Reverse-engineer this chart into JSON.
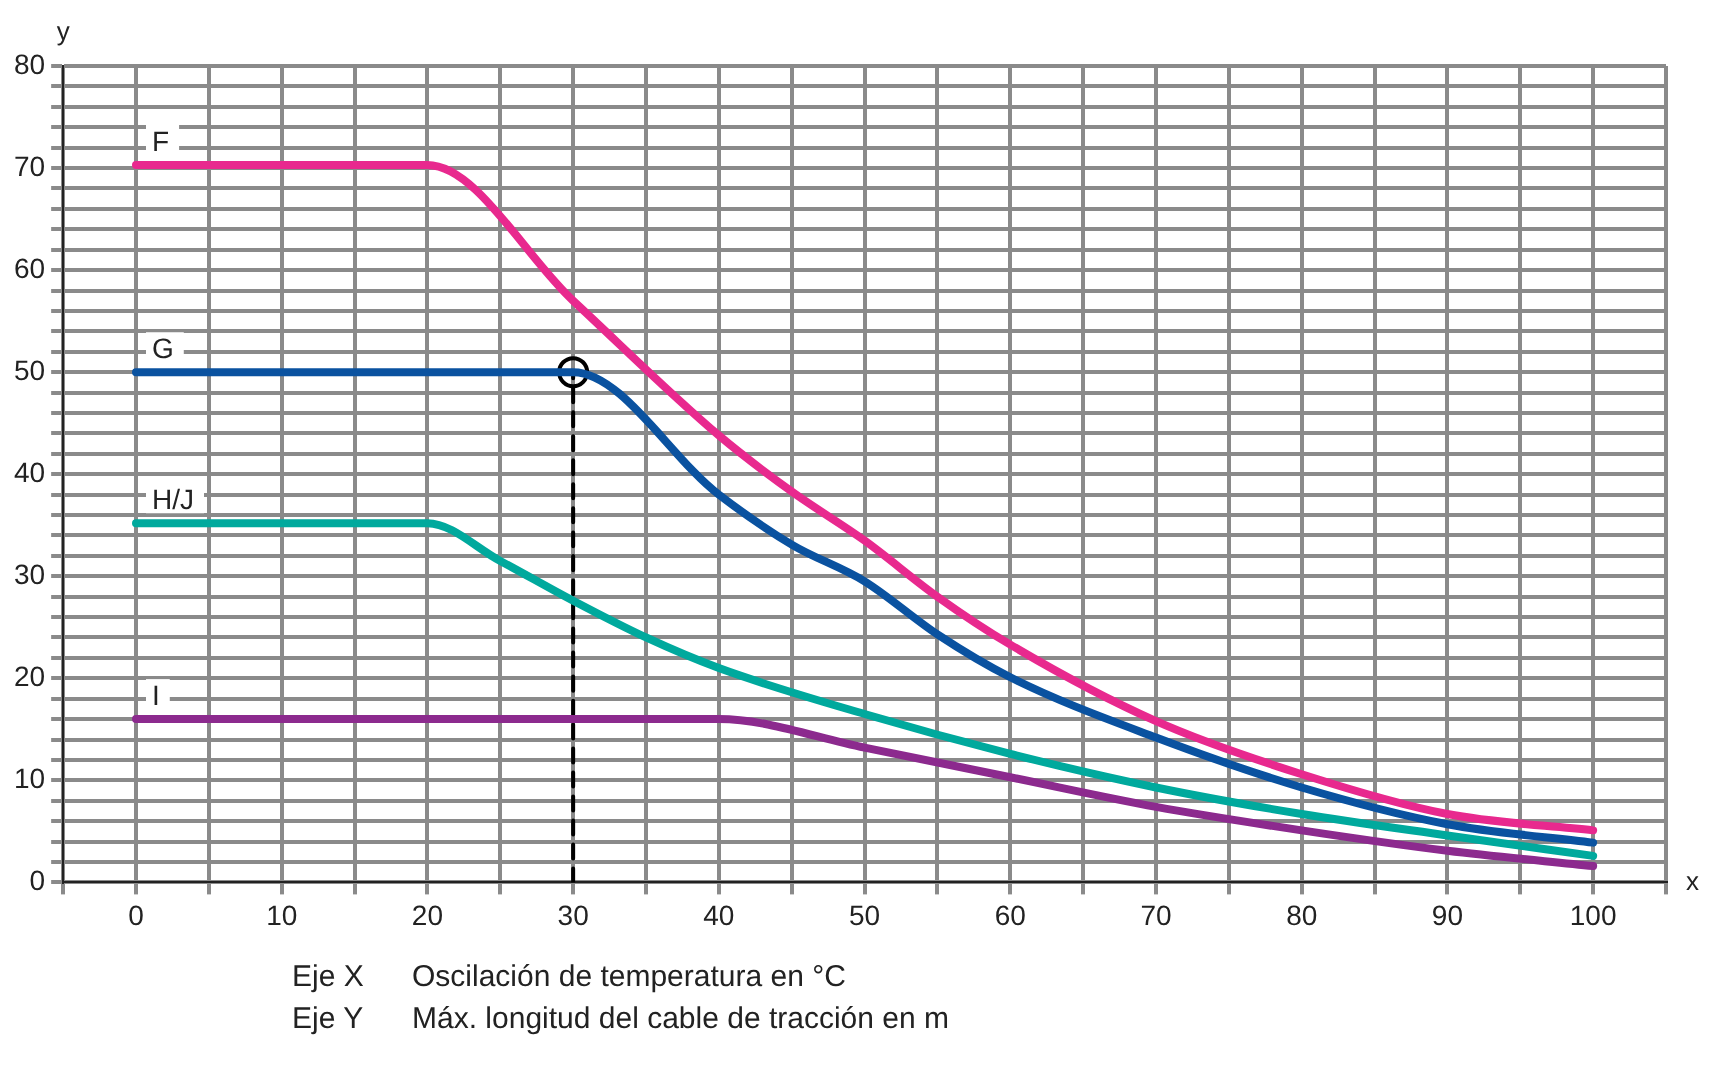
{
  "chart_data": {
    "type": "line",
    "xlabel": "x",
    "ylabel": "y",
    "xlim": [
      -5,
      105
    ],
    "xticks": [
      {
        "value": -5,
        "label": null
      },
      0,
      {
        "value": 5,
        "label": null
      },
      10,
      {
        "value": 15,
        "label": null
      },
      20,
      {
        "value": 25,
        "label": null
      },
      30,
      {
        "value": 35,
        "label": null
      },
      40,
      {
        "value": 45,
        "label": null
      },
      50,
      {
        "value": 55,
        "label": null
      },
      60,
      {
        "value": 65,
        "label": null
      },
      70,
      {
        "value": 75,
        "label": null
      },
      80,
      {
        "value": 85,
        "label": null
      },
      90,
      {
        "value": 95,
        "label": null
      },
      100,
      {
        "value": 105,
        "label": null
      }
    ],
    "ylim": [
      0,
      80
    ],
    "yticks": [
      0,
      {
        "value": 2,
        "label": null
      },
      {
        "value": 4,
        "label": null
      },
      {
        "value": 6,
        "label": null
      },
      {
        "value": 8,
        "label": null
      },
      10,
      {
        "value": 12,
        "label": null
      },
      {
        "value": 14,
        "label": null
      },
      {
        "value": 16,
        "label": null
      },
      {
        "value": 18,
        "label": null
      },
      20,
      {
        "value": 22,
        "label": null
      },
      {
        "value": 24,
        "label": null
      },
      {
        "value": 26,
        "label": null
      },
      {
        "value": 28,
        "label": null
      },
      30,
      {
        "value": 32,
        "label": null
      },
      {
        "value": 34,
        "label": null
      },
      {
        "value": 36,
        "label": null
      },
      {
        "value": 38,
        "label": null
      },
      40,
      {
        "value": 42,
        "label": null
      },
      {
        "value": 44,
        "label": null
      },
      {
        "value": 46,
        "label": null
      },
      {
        "value": 48,
        "label": null
      },
      50,
      {
        "value": 52,
        "label": null
      },
      {
        "value": 54,
        "label": null
      },
      {
        "value": 56,
        "label": null
      },
      {
        "value": 58,
        "label": null
      },
      60,
      {
        "value": 62,
        "label": null
      },
      {
        "value": 64,
        "label": null
      },
      {
        "value": 66,
        "label": null
      },
      {
        "value": 68,
        "label": null
      },
      70,
      {
        "value": 72,
        "label": null
      },
      {
        "value": 74,
        "label": null
      },
      {
        "value": 76,
        "label": null
      },
      {
        "value": 78,
        "label": null
      },
      80
    ],
    "grid": true,
    "legend": false,
    "marker": "none",
    "line_style": "solid",
    "series": [
      {
        "name": "F",
        "color": "#e8298e",
        "x": [
          0,
          20,
          30,
          40,
          45,
          50,
          55,
          60,
          70,
          80,
          90,
          100
        ],
        "values": [
          70.3,
          70.3,
          57,
          43.8,
          38.3,
          33.5,
          28,
          23.3,
          15.8,
          10.6,
          6.7,
          5.1
        ]
      },
      {
        "name": "G",
        "color": "#0a52a0",
        "x": [
          0,
          30,
          40,
          45,
          50,
          55,
          60,
          70,
          80,
          90,
          100
        ],
        "values": [
          50,
          50,
          38,
          33.1,
          29.5,
          24.3,
          20.1,
          14.2,
          9.3,
          5.7,
          3.9
        ]
      },
      {
        "name": "H/J",
        "color": "#00a99d",
        "x": [
          0,
          20,
          25,
          30,
          35,
          40,
          50,
          60,
          70,
          80,
          90,
          100
        ],
        "values": [
          35.2,
          35.2,
          31.5,
          27.6,
          24,
          21,
          16.5,
          12.6,
          9.3,
          6.7,
          4.6,
          2.6
        ]
      },
      {
        "name": "I",
        "color": "#8c2a8e",
        "x": [
          0,
          40,
          50,
          60,
          70,
          80,
          90,
          100
        ],
        "values": [
          16,
          16,
          13.2,
          10.3,
          7.4,
          5.1,
          3.1,
          1.6
        ]
      },
      {
        "type": "line",
        "color": "#000000",
        "line_style": "dashed",
        "x": [
          30,
          30
        ],
        "values": [
          0,
          50
        ]
      },
      {
        "type": "scatter",
        "color": "#000000",
        "marker": "circle",
        "x": [
          30
        ],
        "values": [
          50
        ]
      }
    ],
    "annotations": [
      "Eje X\tOscilación de temperatura en °C",
      "Eje Y\tMáx. longitud del cable de tracción en m"
    ]
  }
}
